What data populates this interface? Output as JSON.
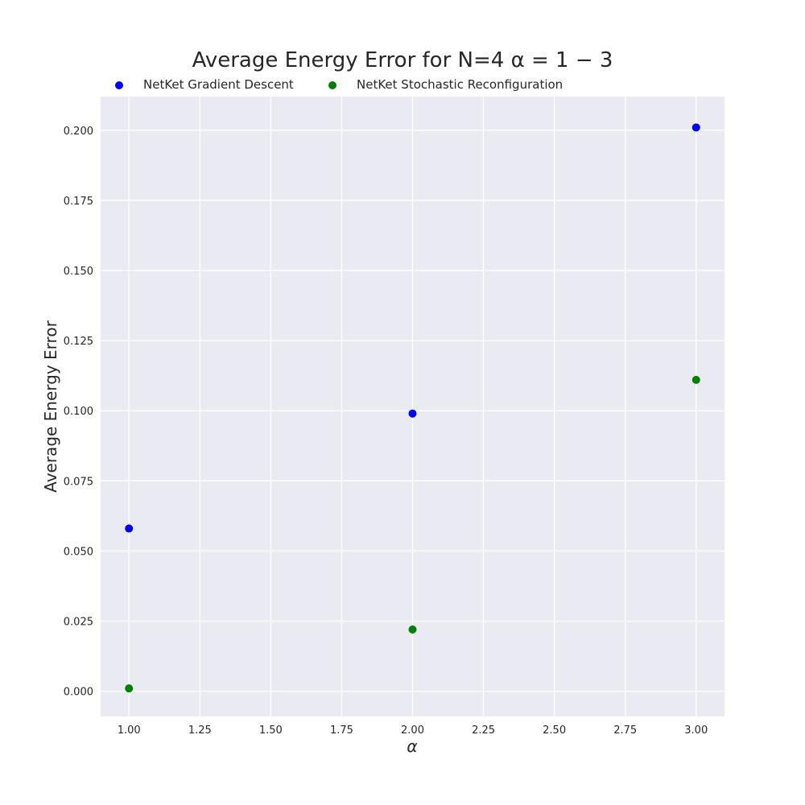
{
  "chart_data": {
    "type": "scatter",
    "title": "Average Energy Error for N=4 α = 1 − 3",
    "xlabel": "α",
    "ylabel": "Average Energy Error",
    "xlim": [
      0.9,
      3.1
    ],
    "ylim": [
      -0.009,
      0.212
    ],
    "xticks": [
      1.0,
      1.25,
      1.5,
      1.75,
      2.0,
      2.25,
      2.5,
      2.75,
      3.0
    ],
    "xtick_labels": [
      "1.00",
      "1.25",
      "1.50",
      "1.75",
      "2.00",
      "2.25",
      "2.50",
      "2.75",
      "3.00"
    ],
    "yticks": [
      0.0,
      0.025,
      0.05,
      0.075,
      0.1,
      0.125,
      0.15,
      0.175,
      0.2
    ],
    "ytick_labels": [
      "0.000",
      "0.025",
      "0.050",
      "0.075",
      "0.100",
      "0.125",
      "0.150",
      "0.175",
      "0.200"
    ],
    "grid": true,
    "legend_position": "top",
    "background": "#eaeaf2",
    "series": [
      {
        "name": "NetKet Gradient Descent",
        "color": "#0000ff",
        "x": [
          1,
          2,
          3
        ],
        "y": [
          0.058,
          0.099,
          0.201
        ]
      },
      {
        "name": "NetKet Stochastic Reconfiguration",
        "color": "#008000",
        "x": [
          1,
          2,
          3
        ],
        "y": [
          0.001,
          0.022,
          0.111
        ]
      }
    ]
  }
}
